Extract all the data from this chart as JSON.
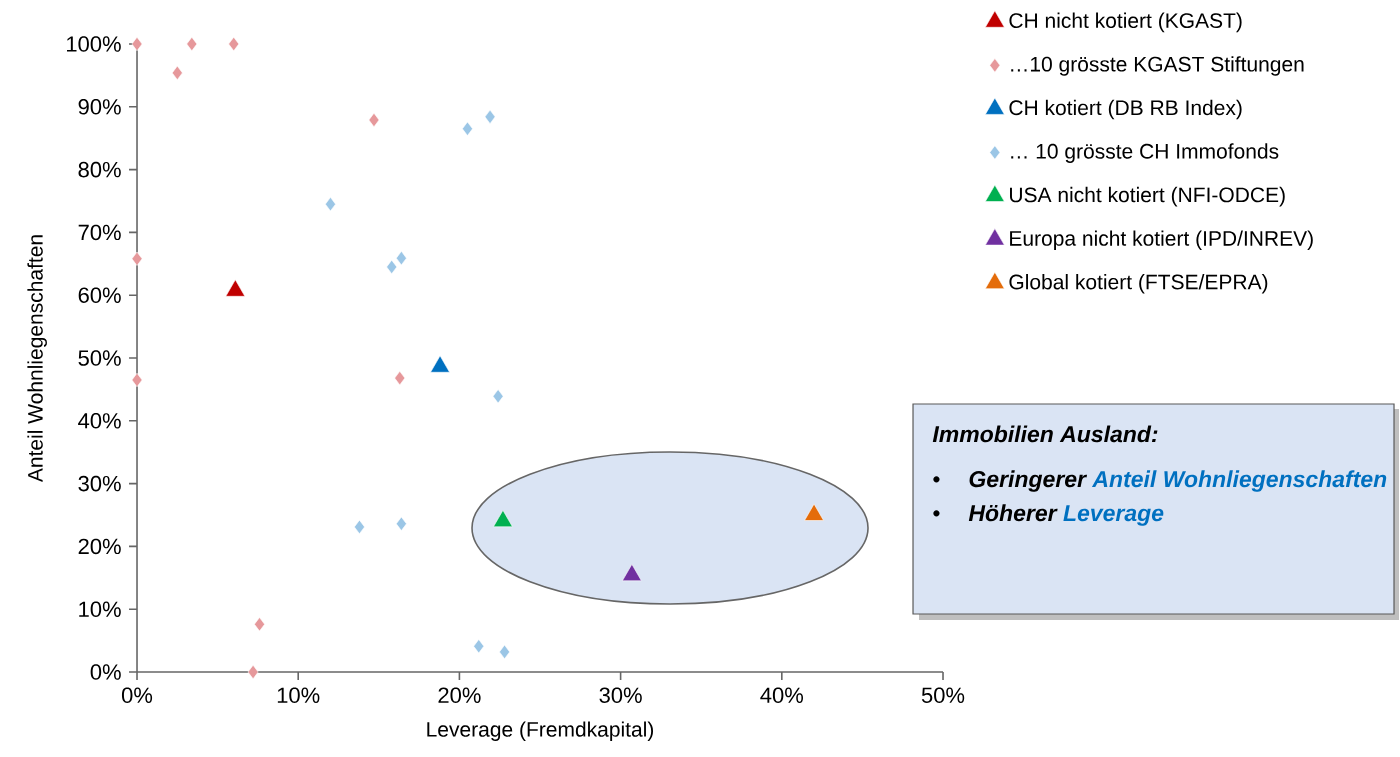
{
  "chart_data": {
    "type": "scatter",
    "xlabel": "Leverage (Fremdkapital)",
    "ylabel": "Anteil Wohnliegenschaften",
    "xlim": [
      0,
      50
    ],
    "ylim": [
      0,
      100
    ],
    "xticks": [
      {
        "value": 0,
        "label": "0%"
      },
      {
        "value": 10,
        "label": "10%"
      },
      {
        "value": 20,
        "label": "20%"
      },
      {
        "value": 30,
        "label": "30%"
      },
      {
        "value": 40,
        "label": "40%"
      },
      {
        "value": 50,
        "label": "50%"
      }
    ],
    "yticks": [
      {
        "value": 0,
        "label": "0%"
      },
      {
        "value": 10,
        "label": "10%"
      },
      {
        "value": 20,
        "label": "20%"
      },
      {
        "value": 30,
        "label": "30%"
      },
      {
        "value": 40,
        "label": "40%"
      },
      {
        "value": 50,
        "label": "50%"
      },
      {
        "value": 60,
        "label": "60%"
      },
      {
        "value": 70,
        "label": "70%"
      },
      {
        "value": 80,
        "label": "80%"
      },
      {
        "value": 90,
        "label": "90%"
      },
      {
        "value": 100,
        "label": "100%"
      }
    ],
    "legend": "top right",
    "grid": false,
    "series": [
      {
        "name": "CH nicht kotiert (KGAST)",
        "color": "#c00000",
        "marker": "triangle",
        "x": [
          6.1
        ],
        "values": [
          60.7
        ]
      },
      {
        "name": "…10 grösste KGAST Stiftungen",
        "color": "#e6989b",
        "marker": "diamond",
        "x": [
          0,
          3.4,
          6.0,
          2.5,
          14.7,
          0,
          0,
          16.3,
          7.6,
          7.2
        ],
        "values": [
          100,
          100,
          100,
          95.4,
          87.9,
          65.8,
          46.5,
          46.8,
          7.6,
          0
        ]
      },
      {
        "name": "CH kotiert (DB RB Index)",
        "color": "#0070c0",
        "marker": "triangle",
        "x": [
          18.8
        ],
        "values": [
          48.6
        ]
      },
      {
        "name": "… 10 grösste CH Immofonds",
        "color": "#9bc6e6",
        "marker": "diamond",
        "x": [
          20.5,
          21.9,
          12.0,
          15.8,
          16.4,
          22.4,
          13.8,
          16.4,
          21.2,
          22.8
        ],
        "values": [
          86.5,
          88.4,
          74.5,
          64.5,
          65.9,
          43.9,
          23.1,
          23.6,
          4.1,
          3.2
        ]
      },
      {
        "name": "USA nicht kotiert (NFI-ODCE)",
        "color": "#00b050",
        "marker": "triangle",
        "x": [
          22.7
        ],
        "values": [
          24.0
        ]
      },
      {
        "name": "Europa nicht kotiert (IPD/INREV)",
        "color": "#7030a0",
        "marker": "triangle",
        "x": [
          30.7
        ],
        "values": [
          15.4
        ]
      },
      {
        "name": "Global kotiert (FTSE/EPRA)",
        "color": "#e46c0a",
        "marker": "triangle",
        "x": [
          42.0
        ],
        "values": [
          25.0
        ]
      }
    ],
    "annotations": [
      "Immobilien Ausland:",
      "•",
      "Geringerer",
      "Anteil Wohnliegenschaften",
      "•",
      "Höherer",
      "Leverage"
    ]
  }
}
